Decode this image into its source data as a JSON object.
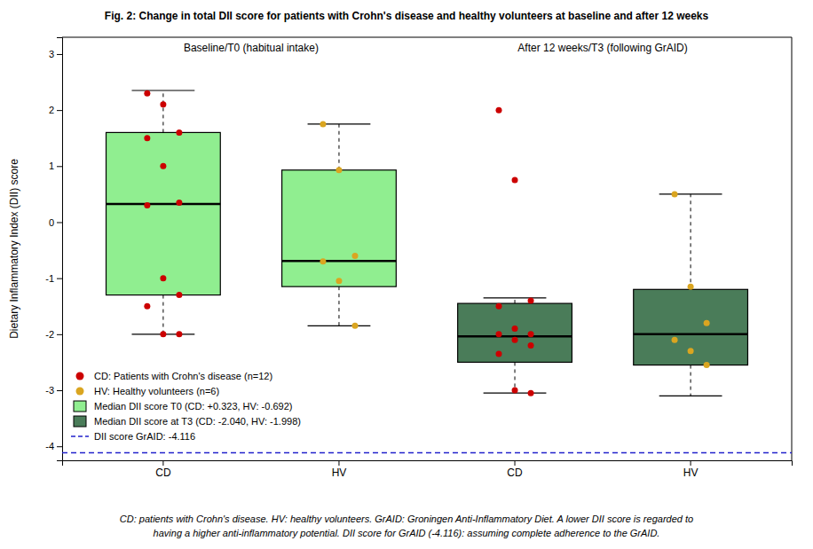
{
  "chart_data": {
    "type": "box",
    "title": "Fig. 2: Change in total DII score for patients with Crohn's disease and healthy volunteers at baseline and after 12 weeks",
    "ylabel": "Dietary Inflammatory Index (DII) score",
    "footnote": "CD: patients with Crohn's disease. HV: healthy volunteers. GrAID: Groningen Anti-Inflammatory Diet. A lower DII score is regarded to\nhaving a higher anti-inflammatory potential. DII score for GrAID (-4.116): assuming complete adherence to the GrAID.",
    "categories": [
      "CD",
      "HV",
      "CD",
      "HV"
    ],
    "group_labels": [
      "Baseline/T0 (habitual intake)",
      "After 12 weeks/T3 (following GrAID)"
    ],
    "ylim": [
      -4.25,
      3.3
    ],
    "yticks": [
      -4,
      -3,
      -2,
      -1,
      0,
      1,
      2,
      3
    ],
    "legend": "lower left",
    "box_series": [
      {
        "name": "Median DII score T0 (CD: +0.323, HV: -0.692)",
        "color": "#90EE90",
        "boxes": [
          {
            "q1": -1.3,
            "median": 0.323,
            "q3": 1.6,
            "whisker_low": -2.0,
            "whisker_high": 2.35
          },
          {
            "q1": -1.15,
            "median": -0.692,
            "q3": 0.93,
            "whisker_low": -1.85,
            "whisker_high": 1.75
          },
          null,
          null
        ]
      },
      {
        "name": "Median DII score at T3 (CD: -2.040, HV: -1.998)",
        "color": "#4a7c59",
        "boxes": [
          null,
          null,
          {
            "q1": -2.5,
            "median": -2.04,
            "q3": -1.45,
            "whisker_low": -3.05,
            "whisker_high": -1.35
          },
          {
            "q1": -2.55,
            "median": -1.998,
            "q3": -1.2,
            "whisker_low": -3.1,
            "whisker_high": 0.5
          }
        ]
      }
    ],
    "series": [
      {
        "name": "CD: Patients with Crohn's disease (n=12)",
        "type": "scatter",
        "color": "#CC0000",
        "values": [
          [
            2.3,
            2.1,
            1.6,
            1.5,
            1.0,
            0.35,
            0.3,
            -1.0,
            -1.3,
            -1.5,
            -2.0,
            -2.0
          ],
          null,
          [
            2.0,
            0.75,
            -1.4,
            -1.5,
            -1.9,
            -2.0,
            -2.0,
            -2.1,
            -2.2,
            -2.35,
            -3.0,
            -3.05
          ],
          null
        ]
      },
      {
        "name": "HV: Healthy volunteers (n=6)",
        "type": "scatter",
        "color": "#DAA520",
        "values": [
          null,
          [
            1.75,
            0.93,
            -0.6,
            -0.7,
            -1.05,
            -1.85
          ],
          null,
          [
            0.5,
            -1.15,
            -1.8,
            -2.1,
            -2.3,
            -2.55
          ]
        ]
      }
    ],
    "lines": [
      {
        "name": "DII score GrAID: -4.116",
        "color": "#2222CC",
        "value": -4.116,
        "line_style": "dashed"
      }
    ]
  }
}
